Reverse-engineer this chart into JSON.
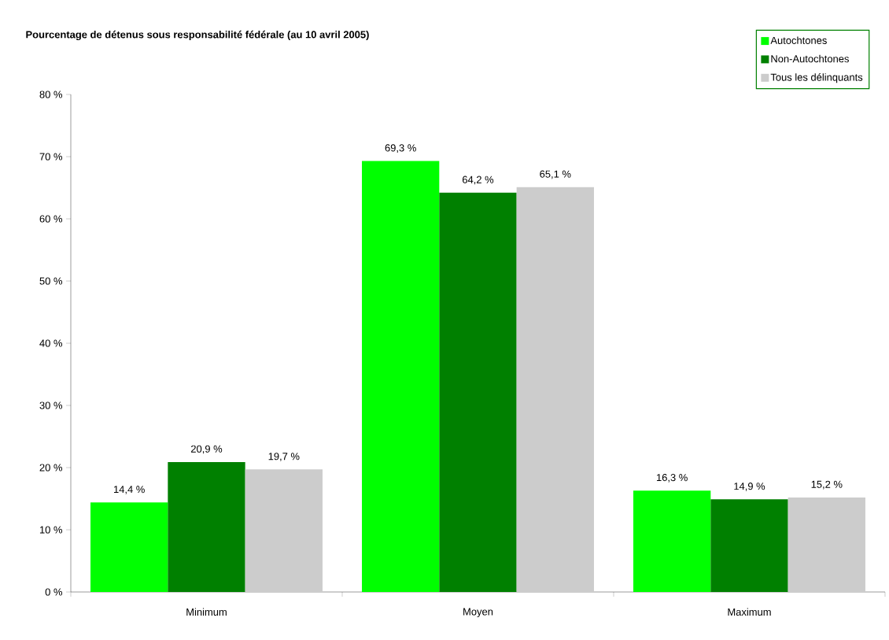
{
  "chart_data": {
    "type": "bar",
    "title": "Pourcentage de détenus sous responsabilité fédérale (au 10 avril 2005)",
    "categories": [
      "Minimum",
      "Moyen",
      "Maximum"
    ],
    "series": [
      {
        "name": "Autochtones",
        "color": "#00ff00",
        "values": [
          14.4,
          69.3,
          16.3
        ],
        "value_labels": [
          "14,4 %",
          "69,3 %",
          "16,3 %"
        ]
      },
      {
        "name": "Non-Autochtones",
        "color": "#008000",
        "values": [
          20.9,
          64.2,
          14.9
        ],
        "value_labels": [
          "20,9 %",
          "64,2 %",
          "14,9 %"
        ]
      },
      {
        "name": "Tous les délinquants",
        "color": "#cccccc",
        "values": [
          19.7,
          65.1,
          15.2
        ],
        "value_labels": [
          "19,7 %",
          "65,1 %",
          "15,2 %"
        ]
      }
    ],
    "ylim": [
      0,
      80
    ],
    "yticks": [
      {
        "value": 0,
        "label": "0 %"
      },
      {
        "value": 10,
        "label": "10 %"
      },
      {
        "value": 20,
        "label": "20 %"
      },
      {
        "value": 30,
        "label": "30 %"
      },
      {
        "value": 40,
        "label": "40 %"
      },
      {
        "value": 50,
        "label": "50 %"
      },
      {
        "value": 60,
        "label": "60 %"
      },
      {
        "value": 70,
        "label": "70 %"
      },
      {
        "value": 80,
        "label": "80 %"
      }
    ],
    "grid": false,
    "legend": "top right"
  }
}
